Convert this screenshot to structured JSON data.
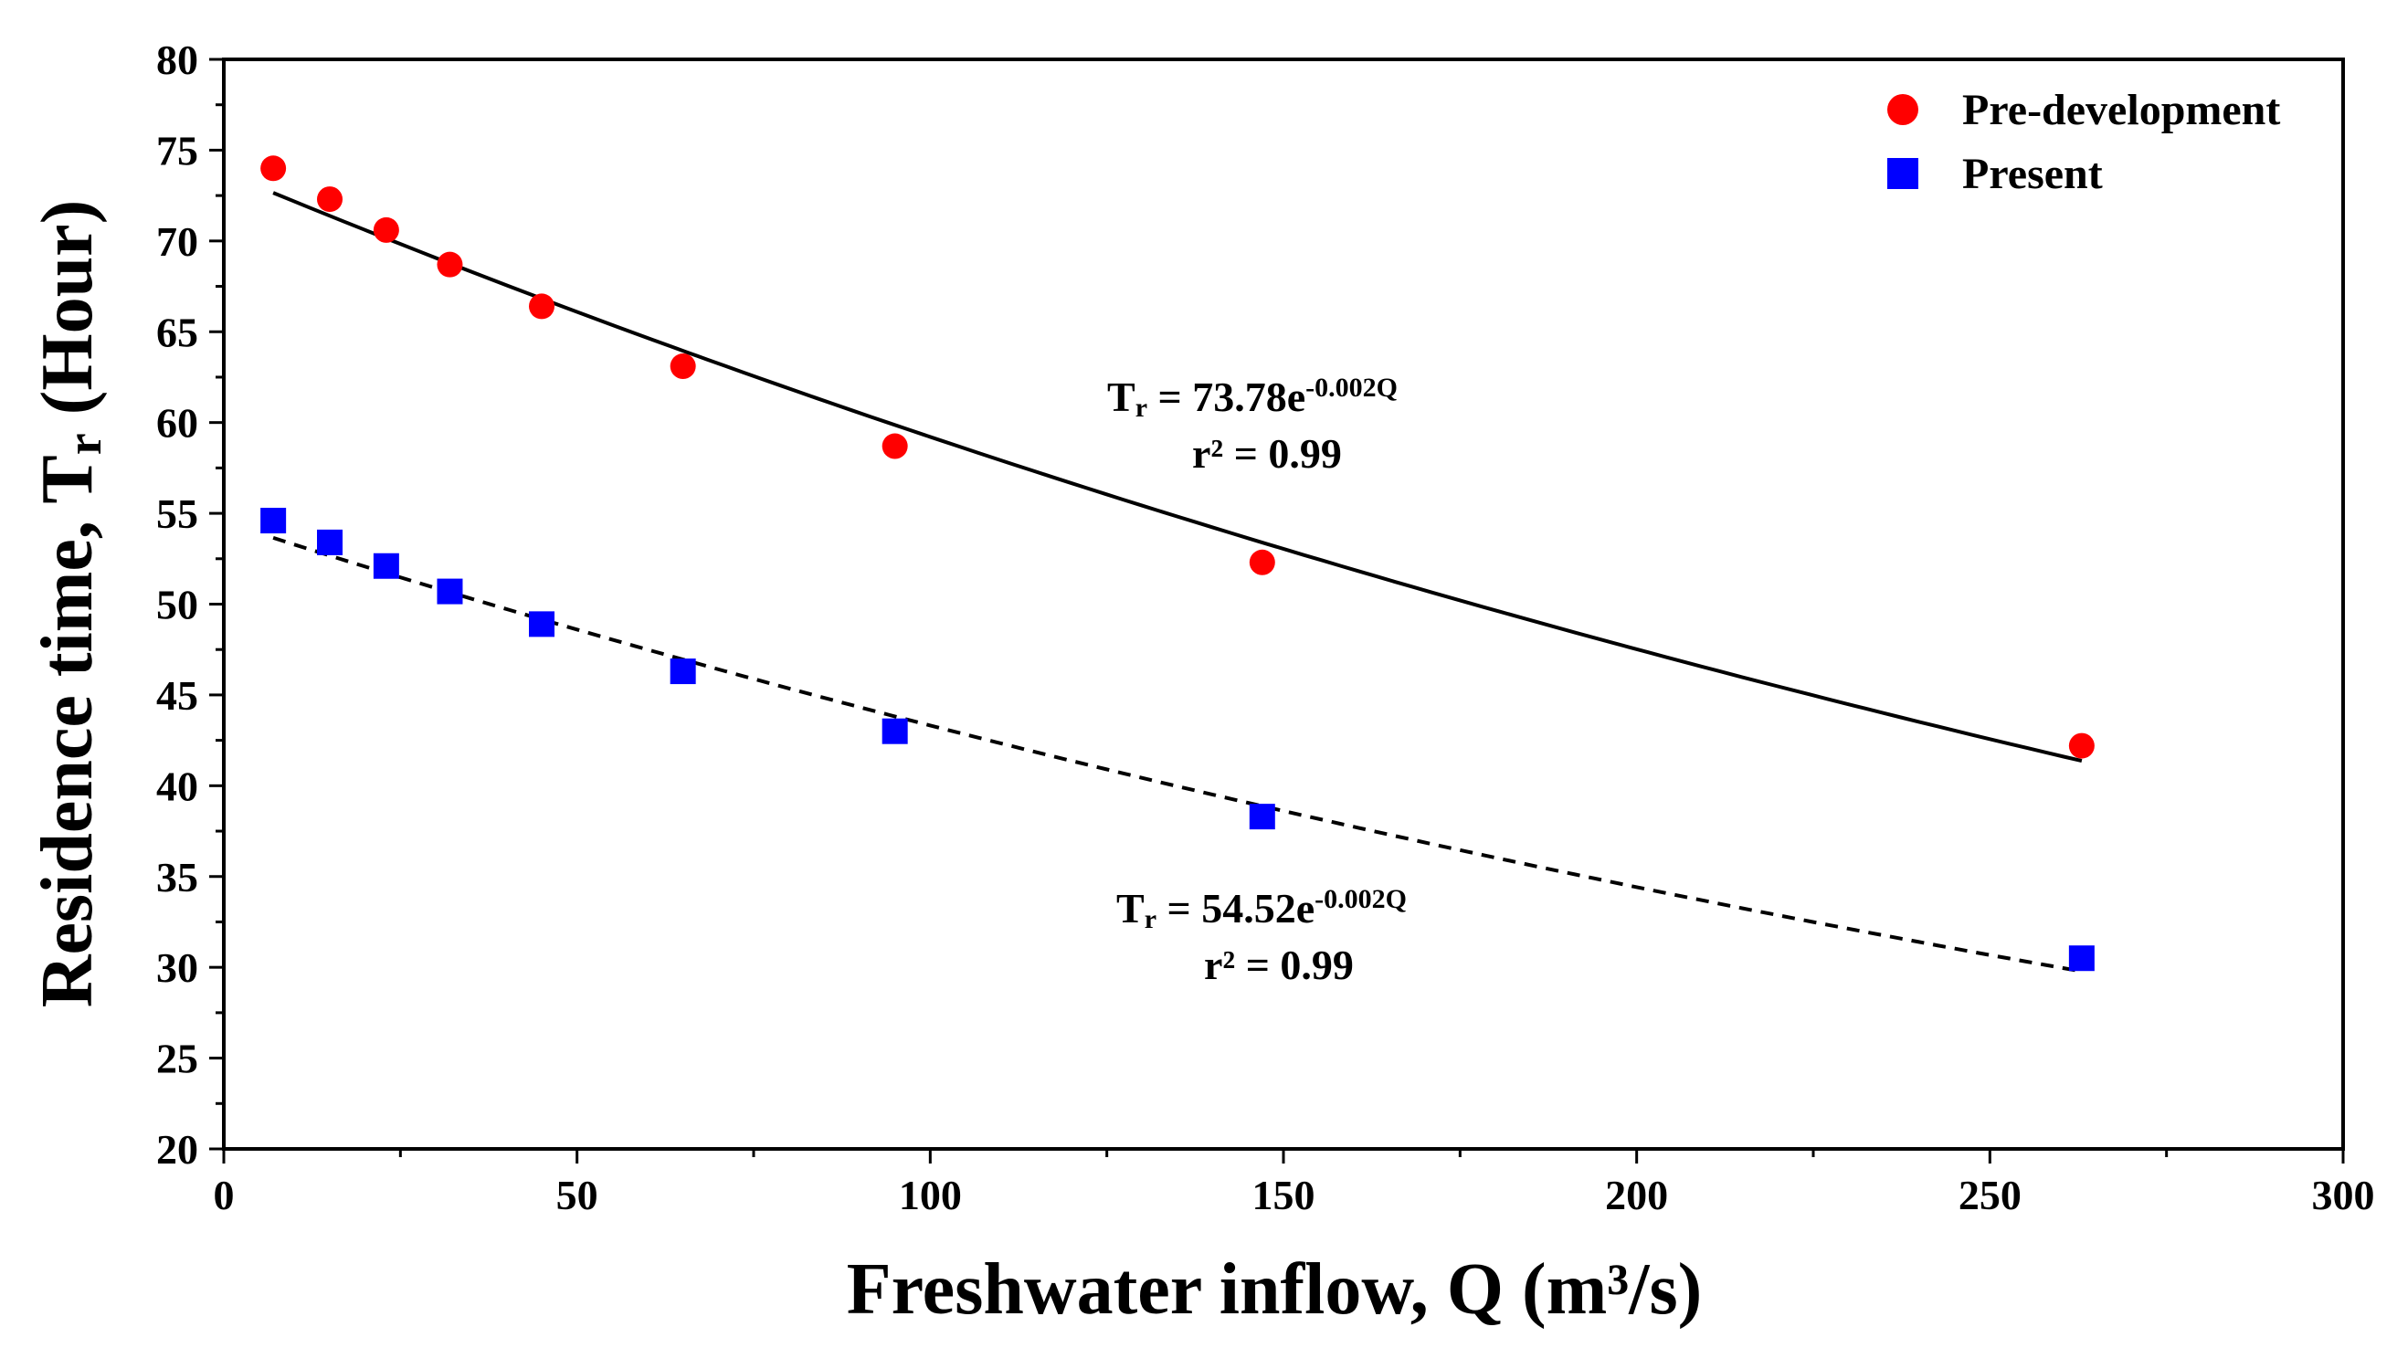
{
  "chart_data": {
    "type": "scatter",
    "title": "",
    "xlabel": "Freshwater inflow, Q (m³/s)",
    "ylabel": "Residence time, Tr (Hour)",
    "ylabel_main": "Residence time, T",
    "ylabel_sub": "r",
    "ylabel_tail": " (Hour)",
    "xlim": [
      0,
      300
    ],
    "ylim": [
      20,
      80
    ],
    "x_ticks": [
      0,
      50,
      100,
      150,
      200,
      250,
      300
    ],
    "y_ticks": [
      20,
      25,
      30,
      35,
      40,
      45,
      50,
      55,
      60,
      65,
      70,
      75,
      80
    ],
    "grid": false,
    "legend_position": "top-right",
    "series": [
      {
        "name": "Pre-development",
        "marker": "circle",
        "color": "#ff0000",
        "x": [
          7,
          15,
          23,
          32,
          45,
          65,
          95,
          147,
          263
        ],
        "y": [
          74.0,
          72.3,
          70.6,
          68.7,
          66.4,
          63.1,
          58.7,
          52.3,
          42.2
        ],
        "fit": {
          "label": "Tr = 73.78e-0.002Q",
          "T": "T",
          "r_sub": "r",
          "base": " = 73.78e",
          "exponent": "-0.002Q",
          "r_squared_label": "r² = 0.99",
          "a": 73.78,
          "b": -0.0022,
          "x_range": [
            7,
            263
          ],
          "line_style": "solid",
          "color": "#000000"
        }
      },
      {
        "name": "Present",
        "marker": "square",
        "color": "#0000ff",
        "x": [
          7,
          15,
          23,
          32,
          45,
          65,
          95,
          147,
          263
        ],
        "y": [
          54.6,
          53.4,
          52.1,
          50.7,
          48.9,
          46.3,
          43.0,
          38.3,
          30.5
        ],
        "fit": {
          "label": "Tr = 54.52e-0.002Q",
          "T": "T",
          "r_sub": "r",
          "base": " = 54.52e",
          "exponent": "-0.002Q",
          "r_squared_label": "r² = 0.99",
          "a": 54.52,
          "b": -0.0023,
          "x_range": [
            7,
            263
          ],
          "line_style": "dashed",
          "color": "#000000"
        }
      }
    ]
  }
}
